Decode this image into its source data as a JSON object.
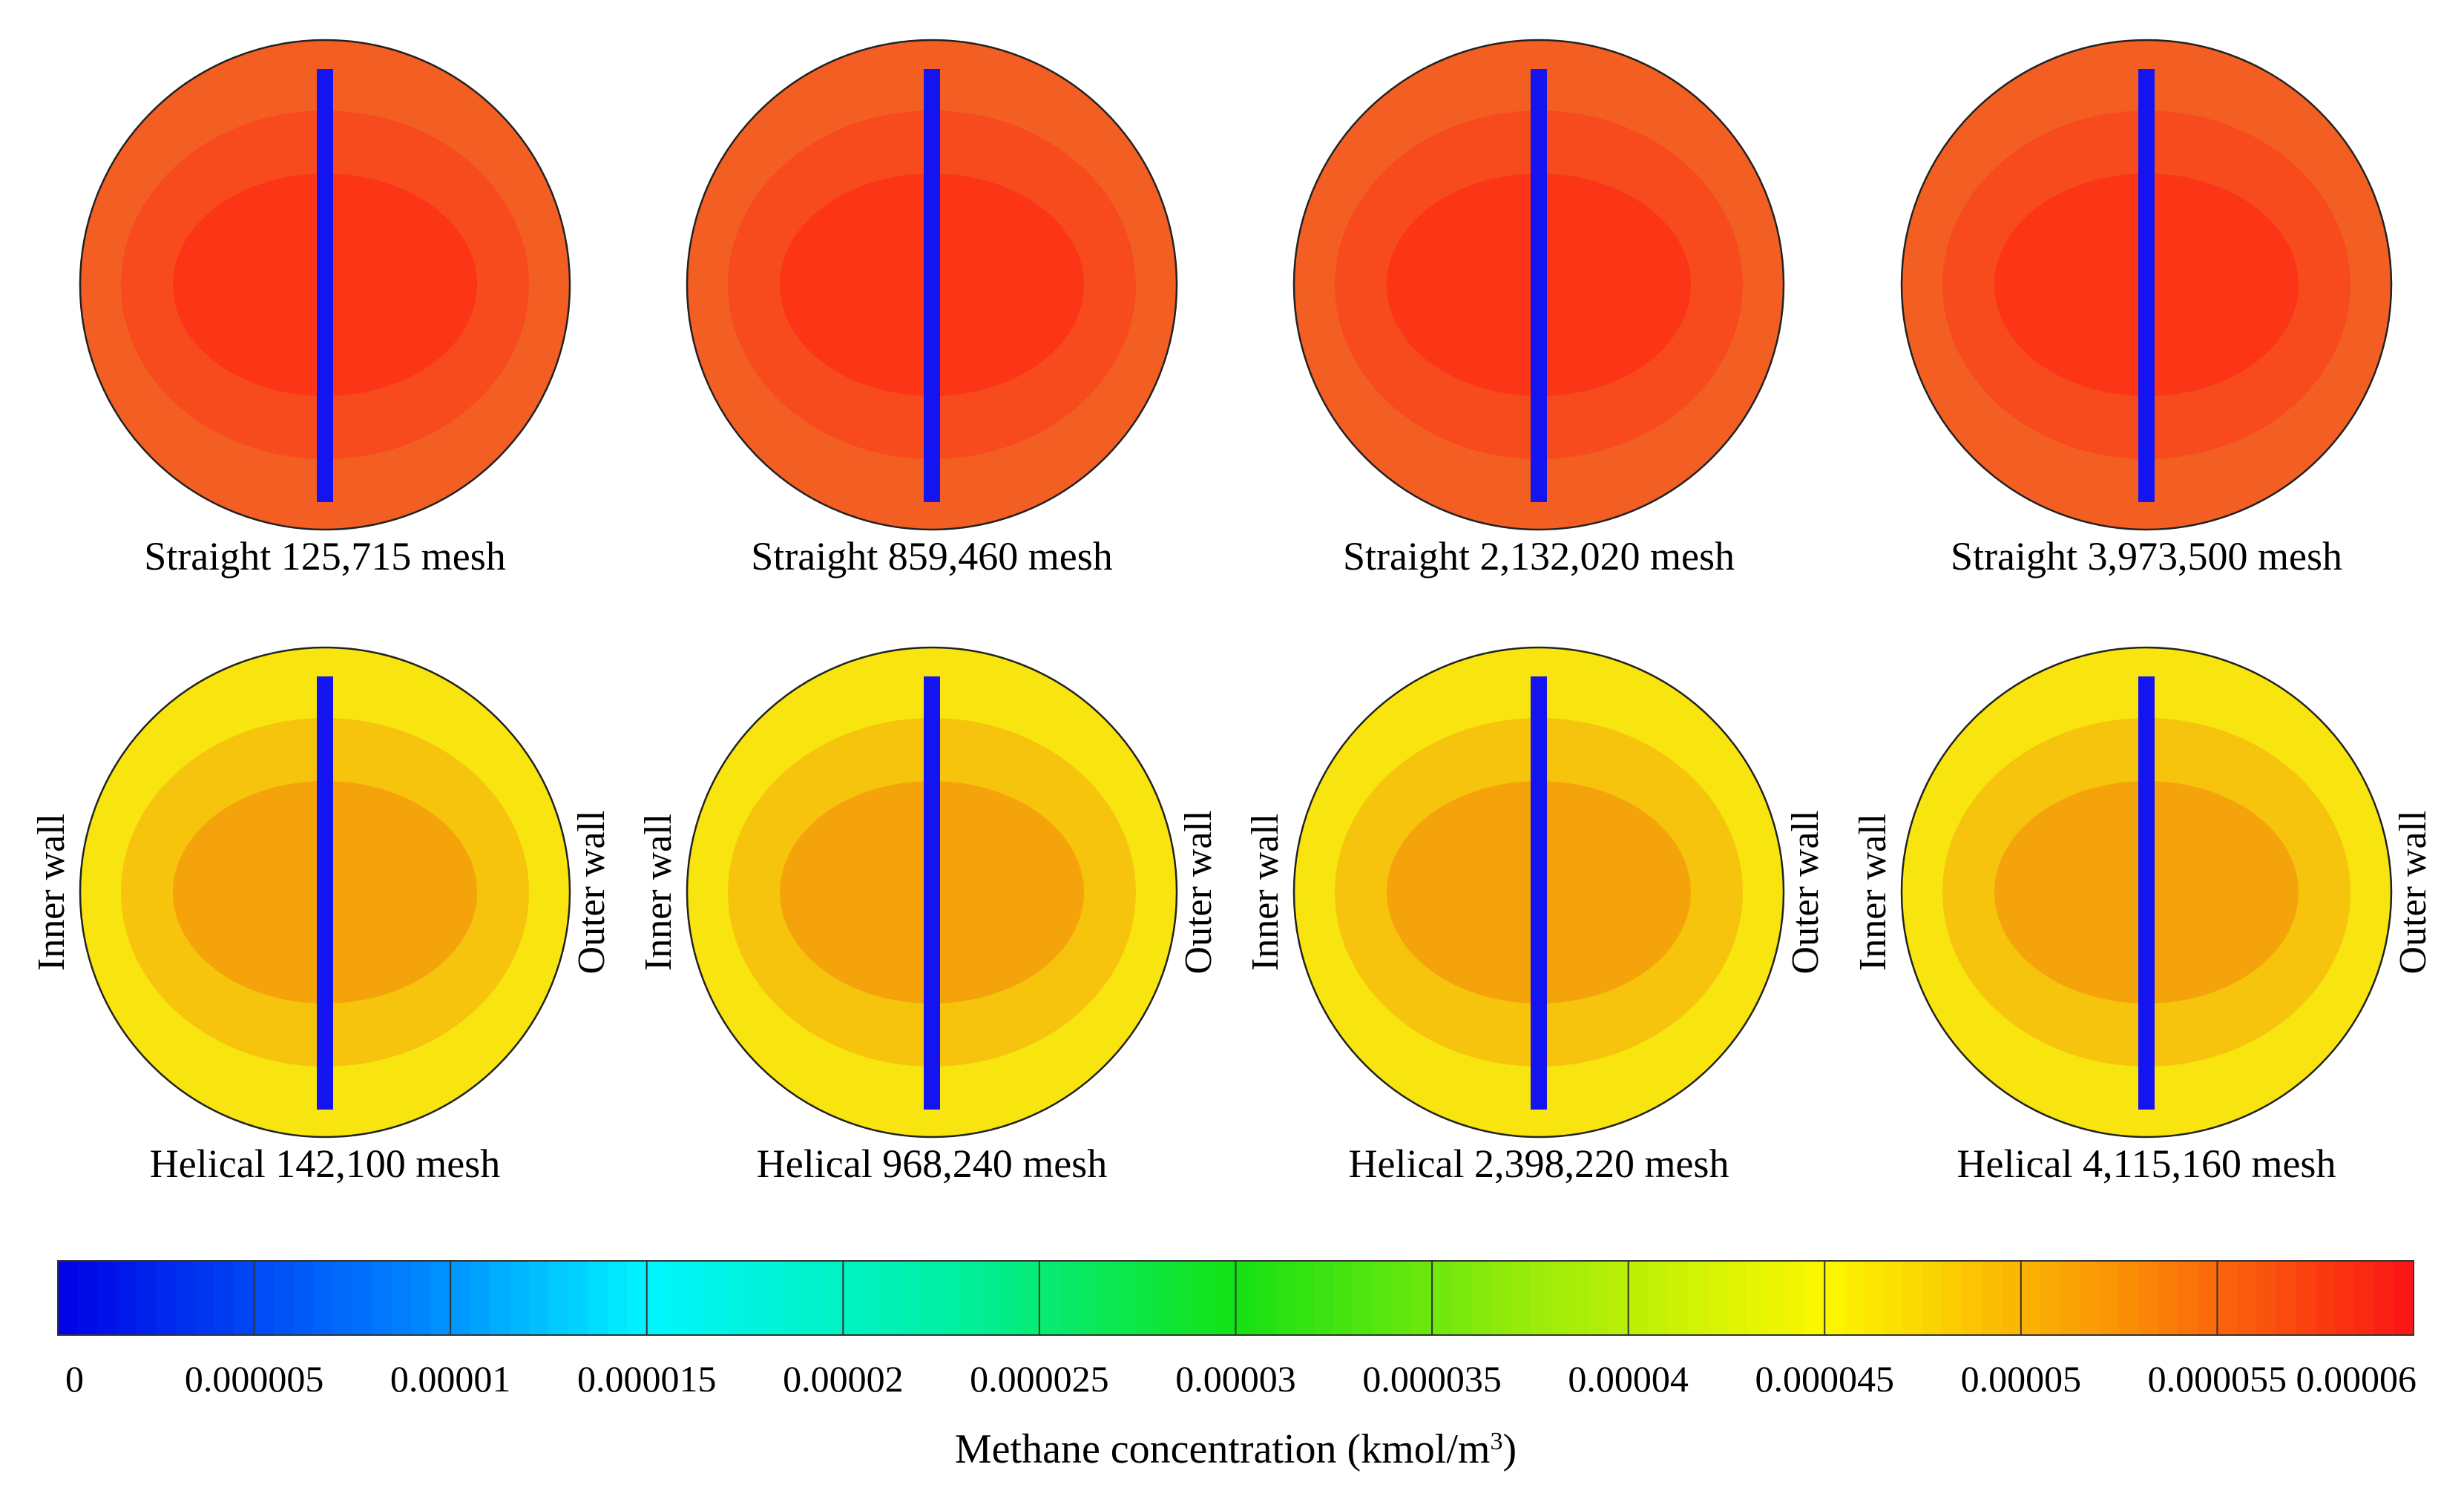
{
  "figure": {
    "rows": [
      {
        "group": "straight",
        "panels": [
          {
            "caption": "Straight 125,715 mesh"
          },
          {
            "caption": "Straight 859,460 mesh"
          },
          {
            "caption": "Straight 2,132,020 mesh"
          },
          {
            "caption": "Straight 3,973,500 mesh"
          }
        ]
      },
      {
        "group": "helical",
        "panels": [
          {
            "caption": "Helical 142,100 mesh"
          },
          {
            "caption": "Helical 968,240 mesh"
          },
          {
            "caption": "Helical 2,398,220 mesh"
          },
          {
            "caption": "Helical 4,115,160 mesh"
          }
        ]
      }
    ],
    "wall_labels": {
      "inner": "Inner wall",
      "outer": "Outer wall"
    },
    "colorbar": {
      "ticks": [
        "0",
        "0.000005",
        "0.00001",
        "0.000015",
        "0.00002",
        "0.000025",
        "0.00003",
        "0.000035",
        "0.00004",
        "0.000045",
        "0.00005",
        "0.000055",
        "0.00006"
      ],
      "title_main": "Methane concentration (kmol/m",
      "title_sup": "3",
      "title_close": ")",
      "min": 0,
      "max": 6e-05
    },
    "colors": {
      "line_marker": "#1414f0",
      "straight_outer": "#f35f22",
      "straight_mid": "#f74a1d",
      "straight_core": "#fb3516",
      "helical_outer": "#f8e50f",
      "helical_mid": "#f6c40c",
      "helical_core": "#f5a30a"
    }
  }
}
